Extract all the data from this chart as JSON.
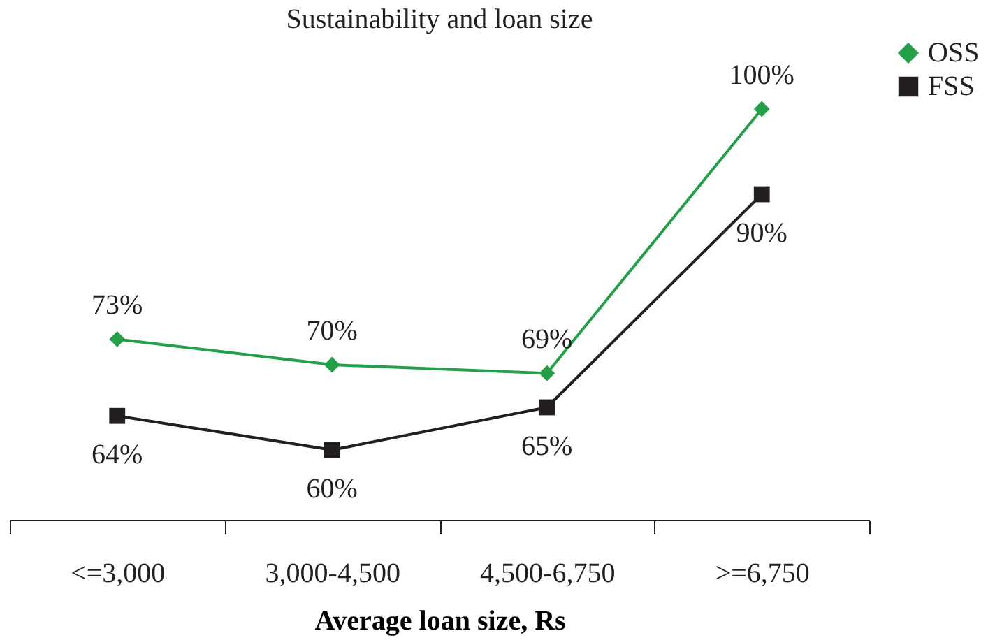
{
  "chart_data": {
    "type": "line",
    "title": "Sustainability and loan size",
    "xlabel": "Average loan size, Rs",
    "categories": [
      "<=3,000",
      "3,000-4,500",
      "4,500-6,750",
      ">=6,750"
    ],
    "series": [
      {
        "name": "OSS",
        "color": "#23a047",
        "marker": "diamond",
        "values": [
          73,
          70,
          69,
          100
        ],
        "value_labels": [
          "73%",
          "70%",
          "69%",
          "100%"
        ]
      },
      {
        "name": "FSS",
        "color": "#231f20",
        "marker": "square",
        "values": [
          64,
          60,
          65,
          90
        ],
        "value_labels": [
          "64%",
          "60%",
          "65%",
          "90%"
        ]
      }
    ],
    "legend": "right",
    "grid": false
  }
}
